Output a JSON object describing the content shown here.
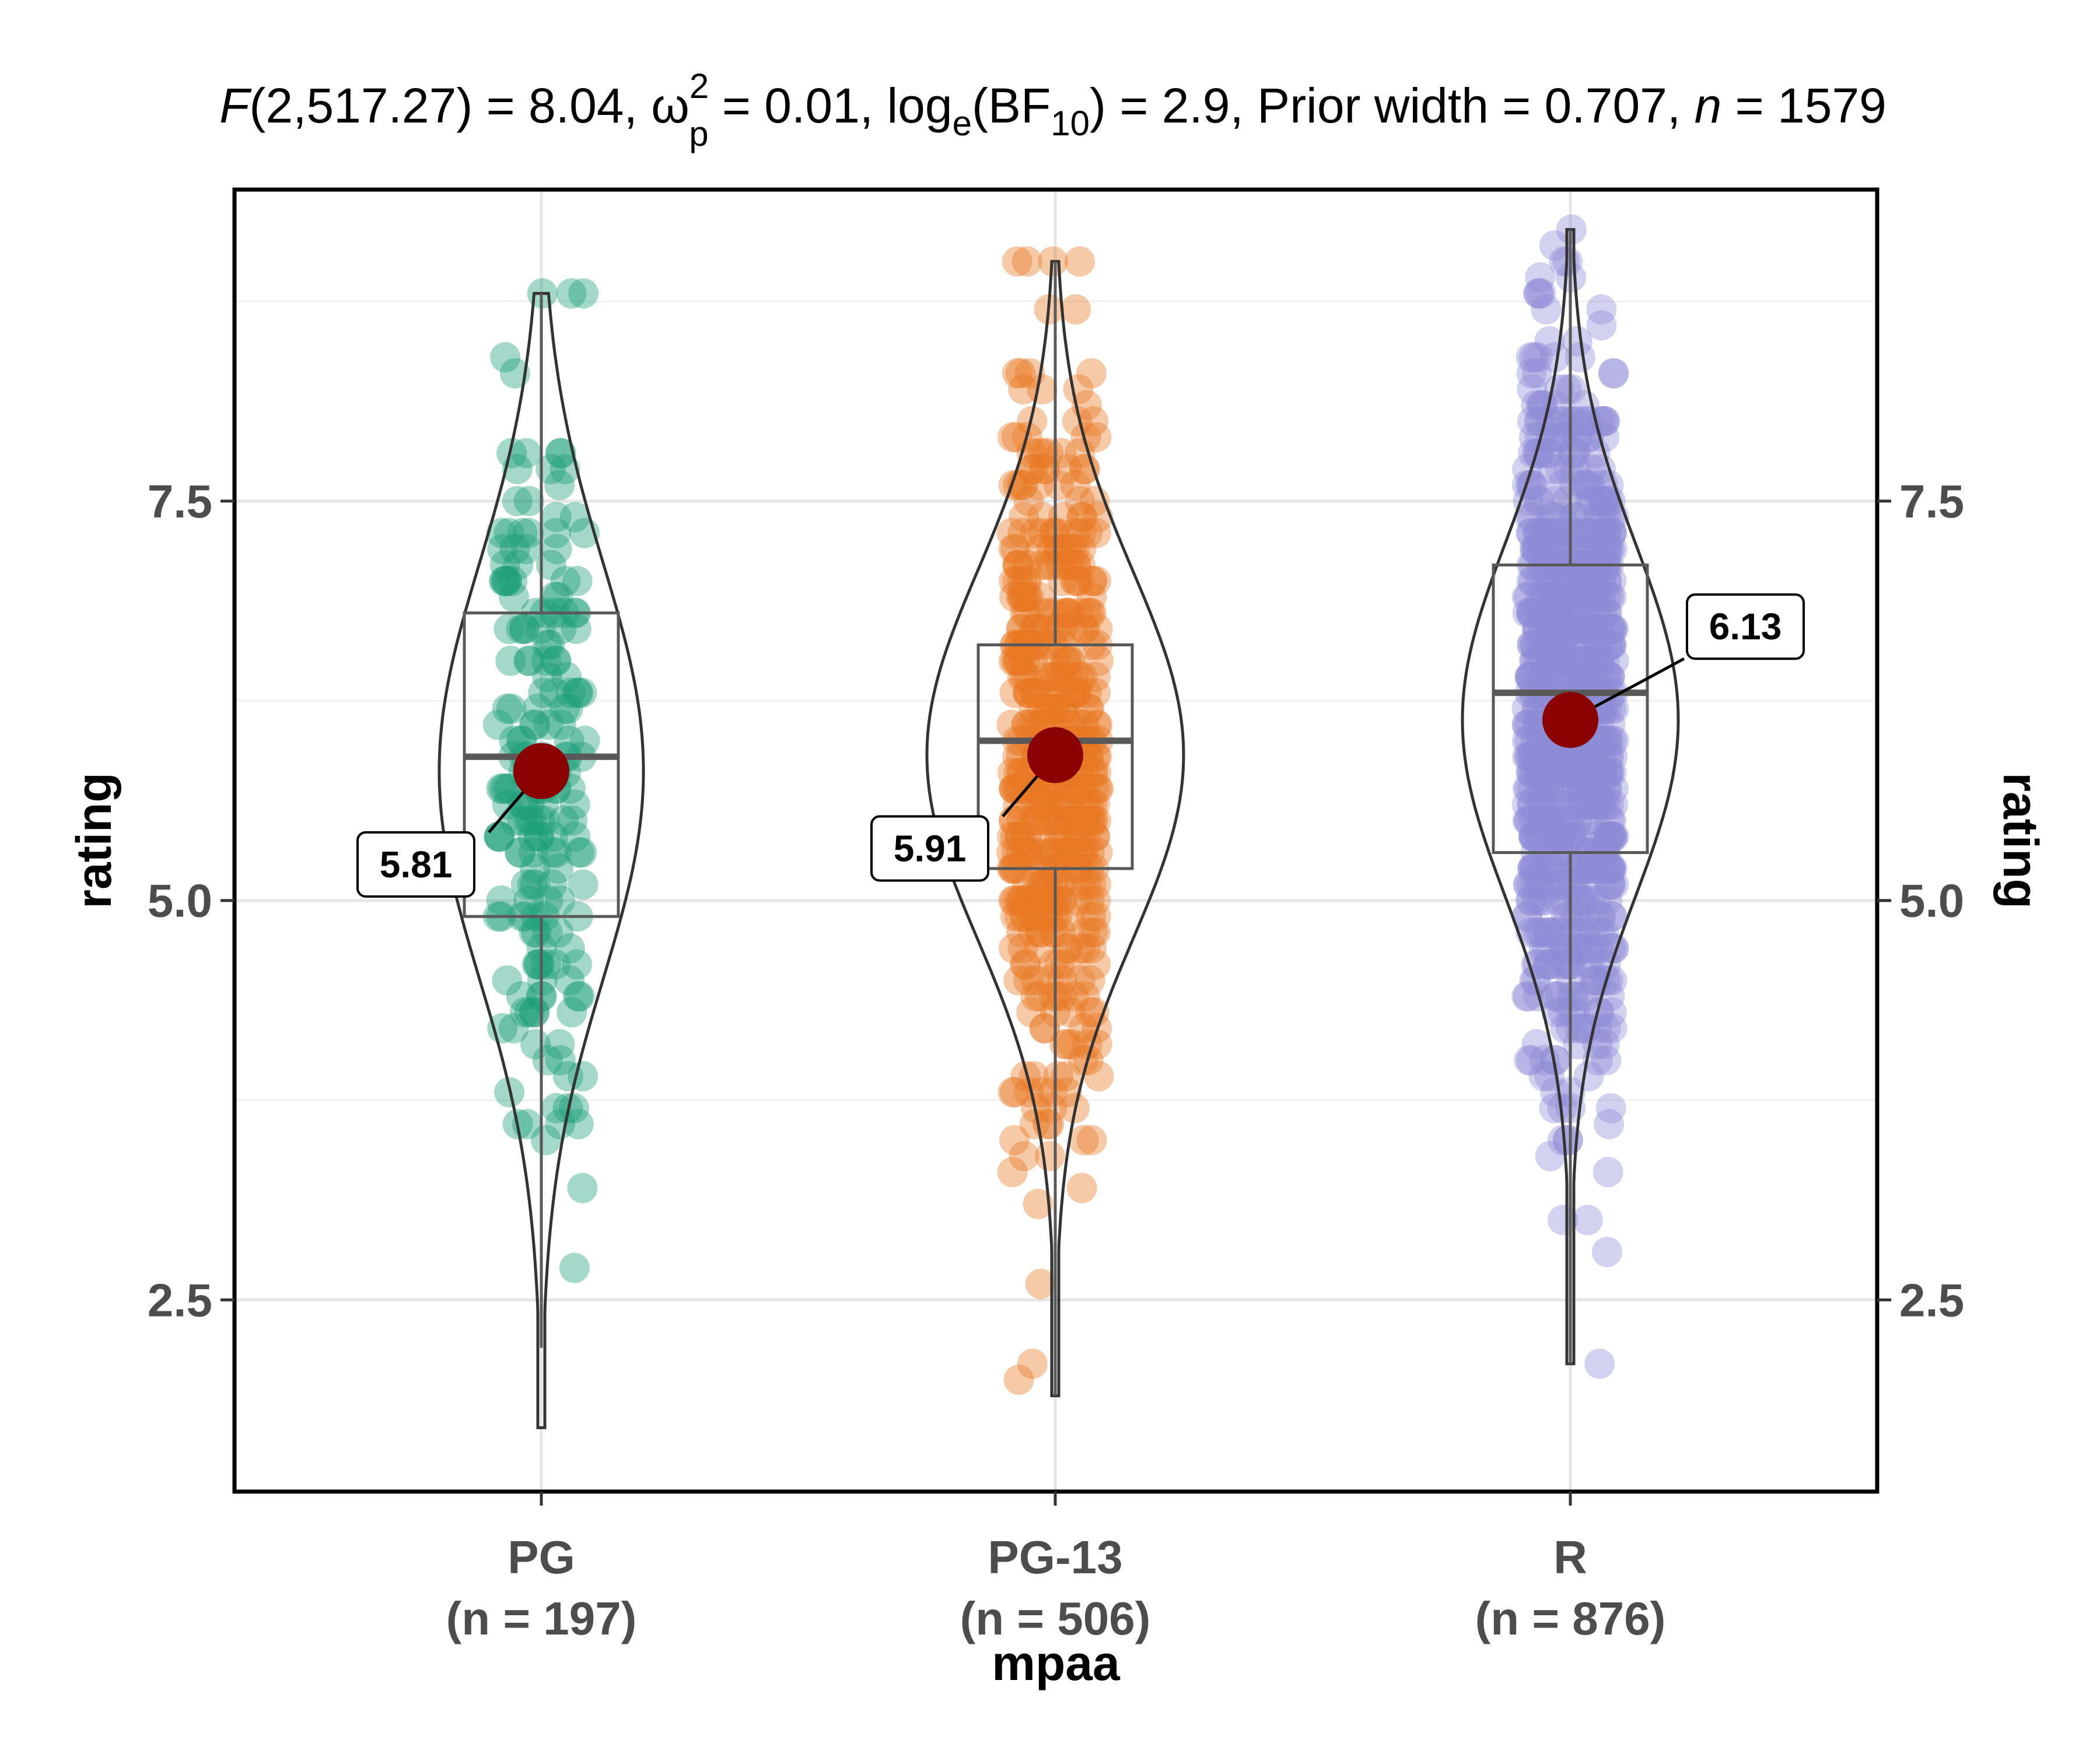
{
  "chart_data": {
    "type": "violin-box-scatter",
    "title_parts": {
      "f_symbol": "F",
      "f_args": "(2,517.27) = 8.04, ",
      "omega": "ω",
      "omega_sup": "2",
      "omega_sub": "p",
      "omega_val": " = 0.01, log",
      "log_sub": "e",
      "bf_open": "(BF",
      "bf_sub": "10",
      "bf_rest": ") = 2.9, Prior width = 0.707, ",
      "n_symbol": "n",
      "n_val": " = 1579"
    },
    "xlabel": "mpaa",
    "ylabel": "rating",
    "ylabel_right": "rating",
    "y_ticks": [
      2.5,
      5.0,
      7.5
    ],
    "y_tick_labels": [
      "2.5",
      "5.0",
      "7.5"
    ],
    "ylim": [
      1.3,
      9.45
    ],
    "grid": true,
    "categories": [
      {
        "name": "PG",
        "n_label": "(n = 197)",
        "color": "#66c2a5",
        "fill": "#1b9e77",
        "min": 1.7,
        "q1": 4.9,
        "median": 5.9,
        "q3": 6.8,
        "max": 8.8,
        "whisker_low": 2.2,
        "whisker_high": 8.8,
        "mean": 5.81,
        "mean_label": "5.81",
        "n_points": 197,
        "point_sd": 1.3
      },
      {
        "name": "PG-13",
        "n_label": "(n = 506)",
        "color": "#fc8d62",
        "fill": "#e87722",
        "min": 1.9,
        "q1": 5.2,
        "median": 6.0,
        "q3": 6.6,
        "max": 9.0,
        "whisker_low": 1.9,
        "whisker_high": 9.0,
        "mean": 5.91,
        "mean_label": "5.91",
        "n_points": 506,
        "point_sd": 1.15
      },
      {
        "name": "R",
        "n_label": "(n = 876)",
        "color": "#8da0cb",
        "fill": "#8e8cd8",
        "min": 2.1,
        "q1": 5.3,
        "median": 6.3,
        "q3": 7.1,
        "max": 9.2,
        "whisker_low": 2.1,
        "whisker_high": 9.2,
        "mean": 6.13,
        "mean_label": "6.13",
        "n_points": 876,
        "point_sd": 1.1
      }
    ]
  }
}
